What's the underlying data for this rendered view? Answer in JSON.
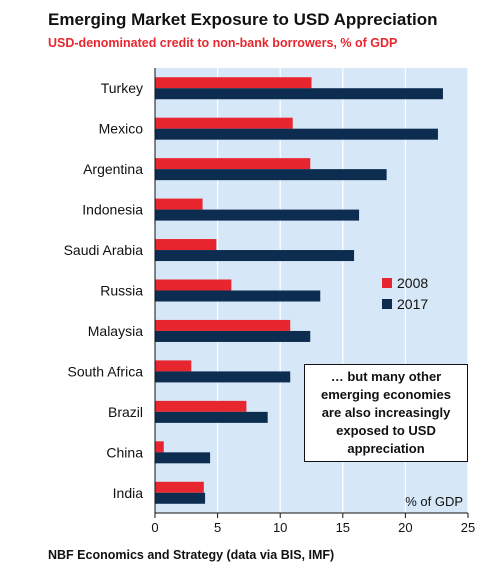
{
  "title": "Emerging Market Exposure to USD Appreciation",
  "subtitle": "USD-denominated credit to non-bank borrowers, % of GDP",
  "source": "NBF Economics and Strategy (data via BIS, IMF)",
  "annotation": "… but many other emerging economies are also increasingly exposed to USD appreciation",
  "unit_label": "% of GDP",
  "colors": {
    "plot_bg": "#d6e7f7",
    "grid": "#ffffff",
    "2008": "#e8262f",
    "2017": "#0c2d4f"
  },
  "chart_data": {
    "type": "bar",
    "orientation": "horizontal",
    "title": "Emerging Market Exposure to USD Appreciation",
    "subtitle": "USD-denominated credit to non-bank borrowers, % of GDP",
    "xlabel": "% of GDP",
    "categories": [
      "Turkey",
      "Mexico",
      "Argentina",
      "Indonesia",
      "Saudi Arabia",
      "Russia",
      "Malaysia",
      "South Africa",
      "Brazil",
      "China",
      "India"
    ],
    "series": [
      {
        "name": "2008",
        "color": "#e8262f",
        "values": [
          12.5,
          11.0,
          12.4,
          3.8,
          4.9,
          6.1,
          10.8,
          2.9,
          7.3,
          0.7,
          3.9
        ]
      },
      {
        "name": "2017",
        "color": "#0c2d4f",
        "values": [
          23.0,
          22.6,
          18.5,
          16.3,
          15.9,
          13.2,
          12.4,
          10.8,
          9.0,
          4.4,
          4.0
        ]
      }
    ],
    "xlim": [
      0,
      25
    ],
    "xticks": [
      0,
      5,
      10,
      15,
      20,
      25
    ],
    "grid": "vertical",
    "legend_position": "right"
  }
}
